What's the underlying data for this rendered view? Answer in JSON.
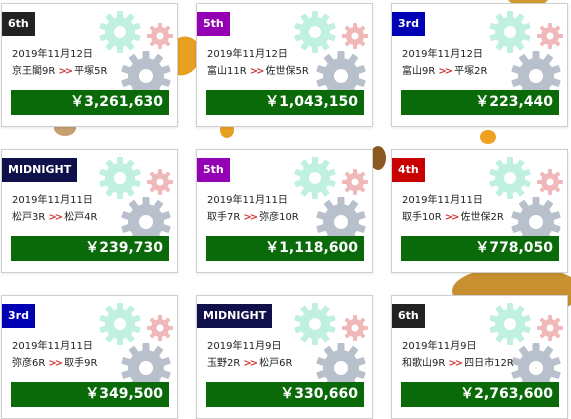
{
  "colors": {
    "badge_rank": "#222222",
    "badge_5th": "#9400b4",
    "badge_3rd": "#0000b4",
    "badge_4th": "#c80000",
    "badge_midnight": "#10104a",
    "payout_bg": "#0a6a0a",
    "gear_mint": "#bff0e0",
    "gear_pink": "#f0b8b8",
    "gear_steel": "#b8c0cc"
  },
  "icons": {
    "gear_large": "gear-icon",
    "gear_small": "gear-icon",
    "route_arrow": "double-chevron-right-icon"
  },
  "cards": [
    {
      "badge": "6th",
      "date": "2019年11月12日",
      "from": "京王閣9R",
      "to": "平塚5R",
      "amount": "￥3,261,630"
    },
    {
      "badge": "5th",
      "date": "2019年11月12日",
      "from": "富山11R",
      "to": "佐世保5R",
      "amount": "￥1,043,150"
    },
    {
      "badge": "3rd",
      "date": "2019年11月12日",
      "from": "富山9R",
      "to": "平塚2R",
      "amount": "￥223,440"
    },
    {
      "badge": "MIDNIGHT",
      "date": "2019年11月11日",
      "from": "松戸3R",
      "to": "松戸4R",
      "amount": "￥239,730"
    },
    {
      "badge": "5th",
      "date": "2019年11月11日",
      "from": "取手7R",
      "to": "弥彦10R",
      "amount": "￥1,118,600"
    },
    {
      "badge": "4th",
      "date": "2019年11月11日",
      "from": "取手10R",
      "to": "佐世保2R",
      "amount": "￥778,050"
    },
    {
      "badge": "3rd",
      "date": "2019年11月11日",
      "from": "弥彦6R",
      "to": "取手9R",
      "amount": "￥349,500"
    },
    {
      "badge": "MIDNIGHT",
      "date": "2019年11月9日",
      "from": "玉野2R",
      "to": "松戸6R",
      "amount": "￥330,660"
    },
    {
      "badge": "6th",
      "date": "2019年11月9日",
      "from": "和歌山9R",
      "to": "四日市12R",
      "amount": "￥2,763,600"
    }
  ]
}
